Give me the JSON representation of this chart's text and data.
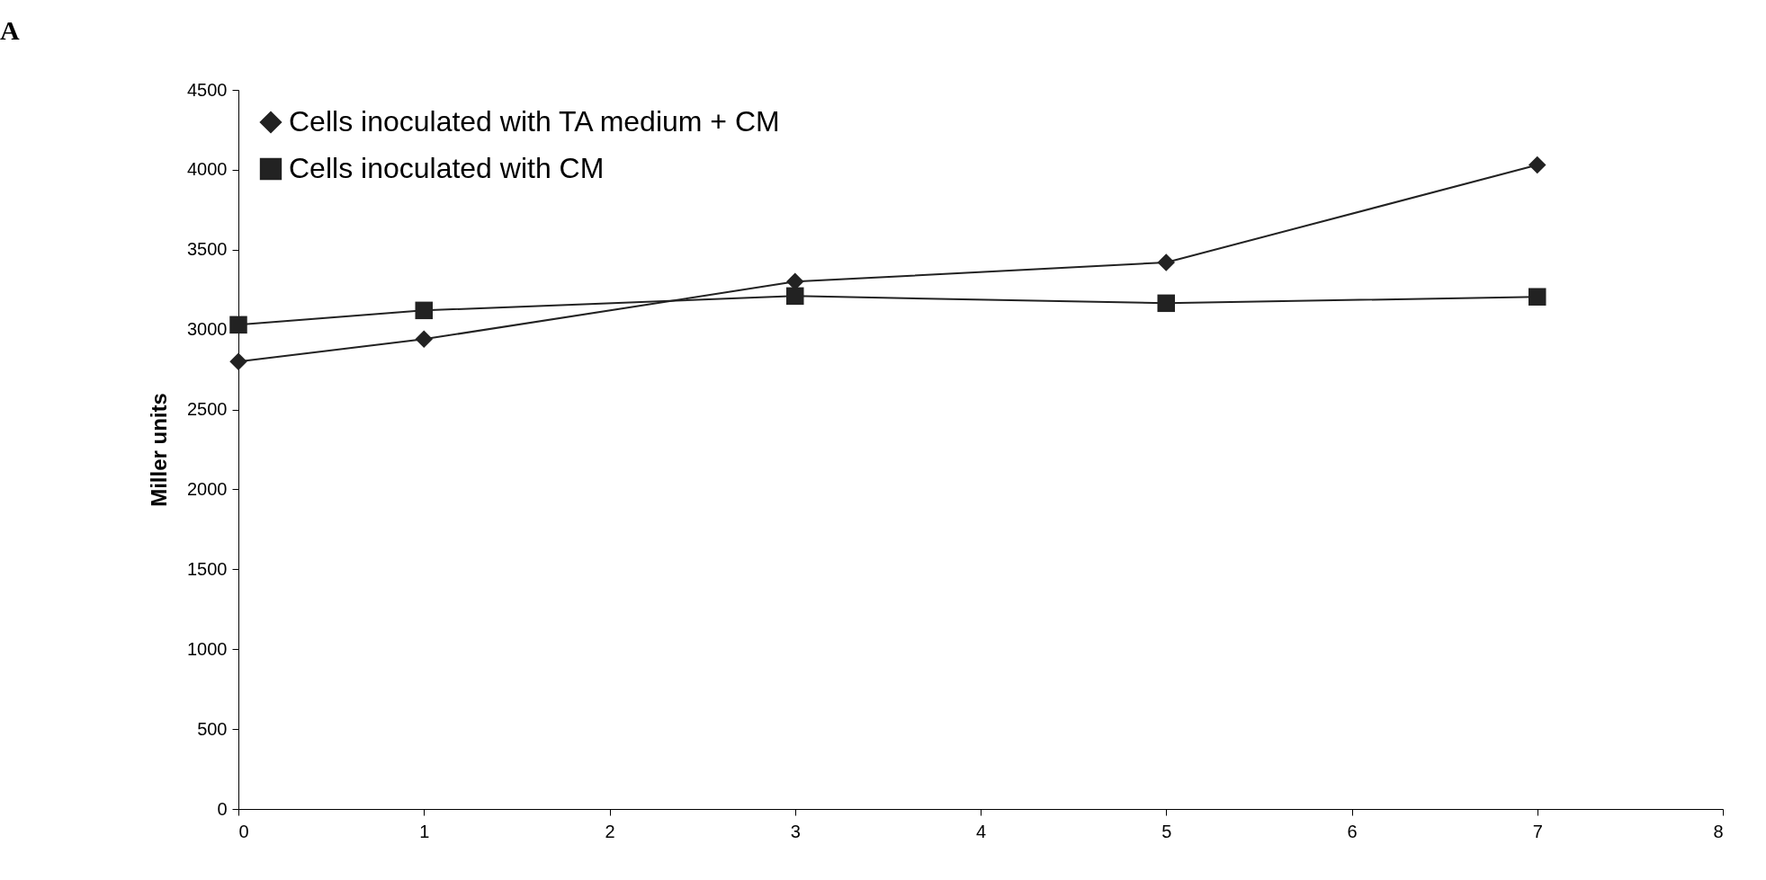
{
  "chart_data": {
    "type": "line",
    "ylabel": "Miller units",
    "annotations": [
      "A"
    ],
    "xlim": [
      0,
      8
    ],
    "xticks": [
      0,
      1,
      2,
      3,
      4,
      5,
      6,
      7,
      8
    ],
    "ylim": [
      0,
      4500
    ],
    "yticks": [
      0,
      500,
      1000,
      1500,
      2000,
      2500,
      3000,
      3500,
      4000,
      4500
    ],
    "grid": false,
    "legend": "top left",
    "line_style": "solid",
    "series": [
      {
        "name": "Cells inoculated with TA medium + CM",
        "color": "#222222",
        "marker": "diamond",
        "x": [
          0,
          1,
          3,
          5,
          7
        ],
        "values": [
          2800,
          2940,
          3300,
          3420,
          4030
        ]
      },
      {
        "name": "Cells inoculated with CM",
        "color": "#222222",
        "marker": "square",
        "x": [
          0,
          1,
          3,
          5,
          7
        ],
        "values": [
          3030,
          3120,
          3210,
          3165,
          3205
        ]
      }
    ]
  }
}
